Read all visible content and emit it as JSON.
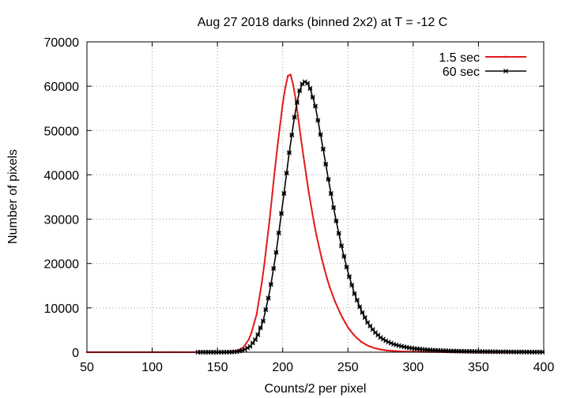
{
  "chart_data": {
    "type": "line",
    "title": "Aug 27 2018 darks (binned 2x2) at T = -12 C",
    "xlabel": "Counts/2 per pixel",
    "ylabel": "Number of pixels",
    "xlim": [
      50,
      400
    ],
    "ylim": [
      0,
      70000
    ],
    "xticks": [
      50,
      100,
      150,
      200,
      250,
      300,
      350,
      400
    ],
    "yticks": [
      0,
      10000,
      20000,
      30000,
      40000,
      50000,
      60000,
      70000
    ],
    "grid": true,
    "legend_position": "top-right",
    "colors": {
      "series_1": "#e41a1c",
      "series_2": "#000000",
      "grid": "#a0a0a0",
      "axis": "#000000"
    },
    "series": [
      {
        "name": "1.5 sec",
        "marker": "dot",
        "points": [
          [
            50,
            0
          ],
          [
            100,
            0
          ],
          [
            130,
            0
          ],
          [
            145,
            0
          ],
          [
            150,
            5
          ],
          [
            155,
            20
          ],
          [
            160,
            80
          ],
          [
            165,
            300
          ],
          [
            170,
            1100
          ],
          [
            175,
            3300
          ],
          [
            180,
            8500
          ],
          [
            185,
            17500
          ],
          [
            190,
            30000
          ],
          [
            195,
            44000
          ],
          [
            200,
            56000
          ],
          [
            203,
            61500
          ],
          [
            205,
            63200
          ],
          [
            207,
            62000
          ],
          [
            210,
            57000
          ],
          [
            215,
            46000
          ],
          [
            220,
            36000
          ],
          [
            225,
            27500
          ],
          [
            230,
            21000
          ],
          [
            235,
            15500
          ],
          [
            240,
            11500
          ],
          [
            245,
            8200
          ],
          [
            250,
            5600
          ],
          [
            255,
            3700
          ],
          [
            260,
            2400
          ],
          [
            265,
            1500
          ],
          [
            270,
            950
          ],
          [
            275,
            600
          ],
          [
            280,
            380
          ],
          [
            290,
            180
          ],
          [
            300,
            90
          ],
          [
            320,
            35
          ],
          [
            350,
            10
          ],
          [
            400,
            0
          ]
        ]
      },
      {
        "name": "60 sec",
        "marker": "cross",
        "points": [
          [
            135,
            0
          ],
          [
            150,
            5
          ],
          [
            160,
            30
          ],
          [
            165,
            120
          ],
          [
            170,
            450
          ],
          [
            175,
            1300
          ],
          [
            180,
            3200
          ],
          [
            185,
            7000
          ],
          [
            190,
            13500
          ],
          [
            195,
            22500
          ],
          [
            200,
            33500
          ],
          [
            205,
            45000
          ],
          [
            210,
            55000
          ],
          [
            214,
            60300
          ],
          [
            217,
            61000
          ],
          [
            220,
            60500
          ],
          [
            225,
            55500
          ],
          [
            230,
            47500
          ],
          [
            235,
            39000
          ],
          [
            240,
            31000
          ],
          [
            245,
            24000
          ],
          [
            250,
            18000
          ],
          [
            255,
            13200
          ],
          [
            260,
            9500
          ],
          [
            265,
            6700
          ],
          [
            270,
            4700
          ],
          [
            275,
            3300
          ],
          [
            280,
            2400
          ],
          [
            285,
            1800
          ],
          [
            290,
            1400
          ],
          [
            295,
            1100
          ],
          [
            300,
            850
          ],
          [
            310,
            550
          ],
          [
            320,
            380
          ],
          [
            330,
            270
          ],
          [
            340,
            200
          ],
          [
            350,
            150
          ],
          [
            360,
            110
          ],
          [
            370,
            80
          ],
          [
            380,
            60
          ],
          [
            390,
            40
          ],
          [
            400,
            30
          ]
        ]
      }
    ]
  }
}
